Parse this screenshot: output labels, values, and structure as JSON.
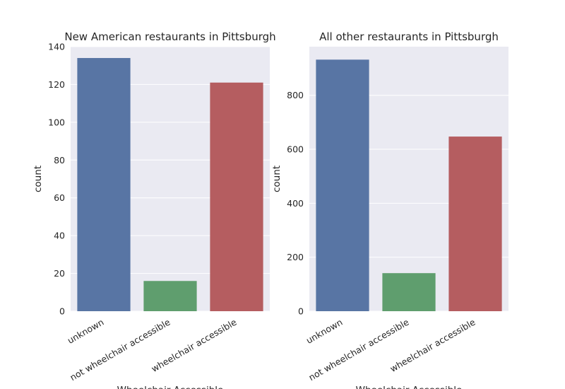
{
  "chart_data": [
    {
      "type": "bar",
      "title": "New American restaurants in Pittsburgh",
      "xlabel": "Wheelchair Accessible",
      "ylabel": "count",
      "categories": [
        "unknown",
        "not wheelchair accessible",
        "wheelchair accessible"
      ],
      "values": [
        134,
        16,
        121
      ],
      "colors": [
        "#5875a4",
        "#5f9e6e",
        "#b55d60"
      ],
      "ylim": [
        0,
        140
      ],
      "yticks": [
        0,
        20,
        40,
        60,
        80,
        100,
        120,
        140
      ],
      "grid": true
    },
    {
      "type": "bar",
      "title": "All other restaurants in Pittsburgh",
      "xlabel": "Wheelchair Accessible",
      "ylabel": "count",
      "categories": [
        "unknown",
        "not wheelchair accessible",
        "wheelchair accessible"
      ],
      "values": [
        932,
        141,
        647
      ],
      "colors": [
        "#5875a4",
        "#5f9e6e",
        "#b55d60"
      ],
      "ylim": [
        0,
        980
      ],
      "yticks": [
        0,
        200,
        400,
        600,
        800
      ],
      "grid": true
    }
  ]
}
